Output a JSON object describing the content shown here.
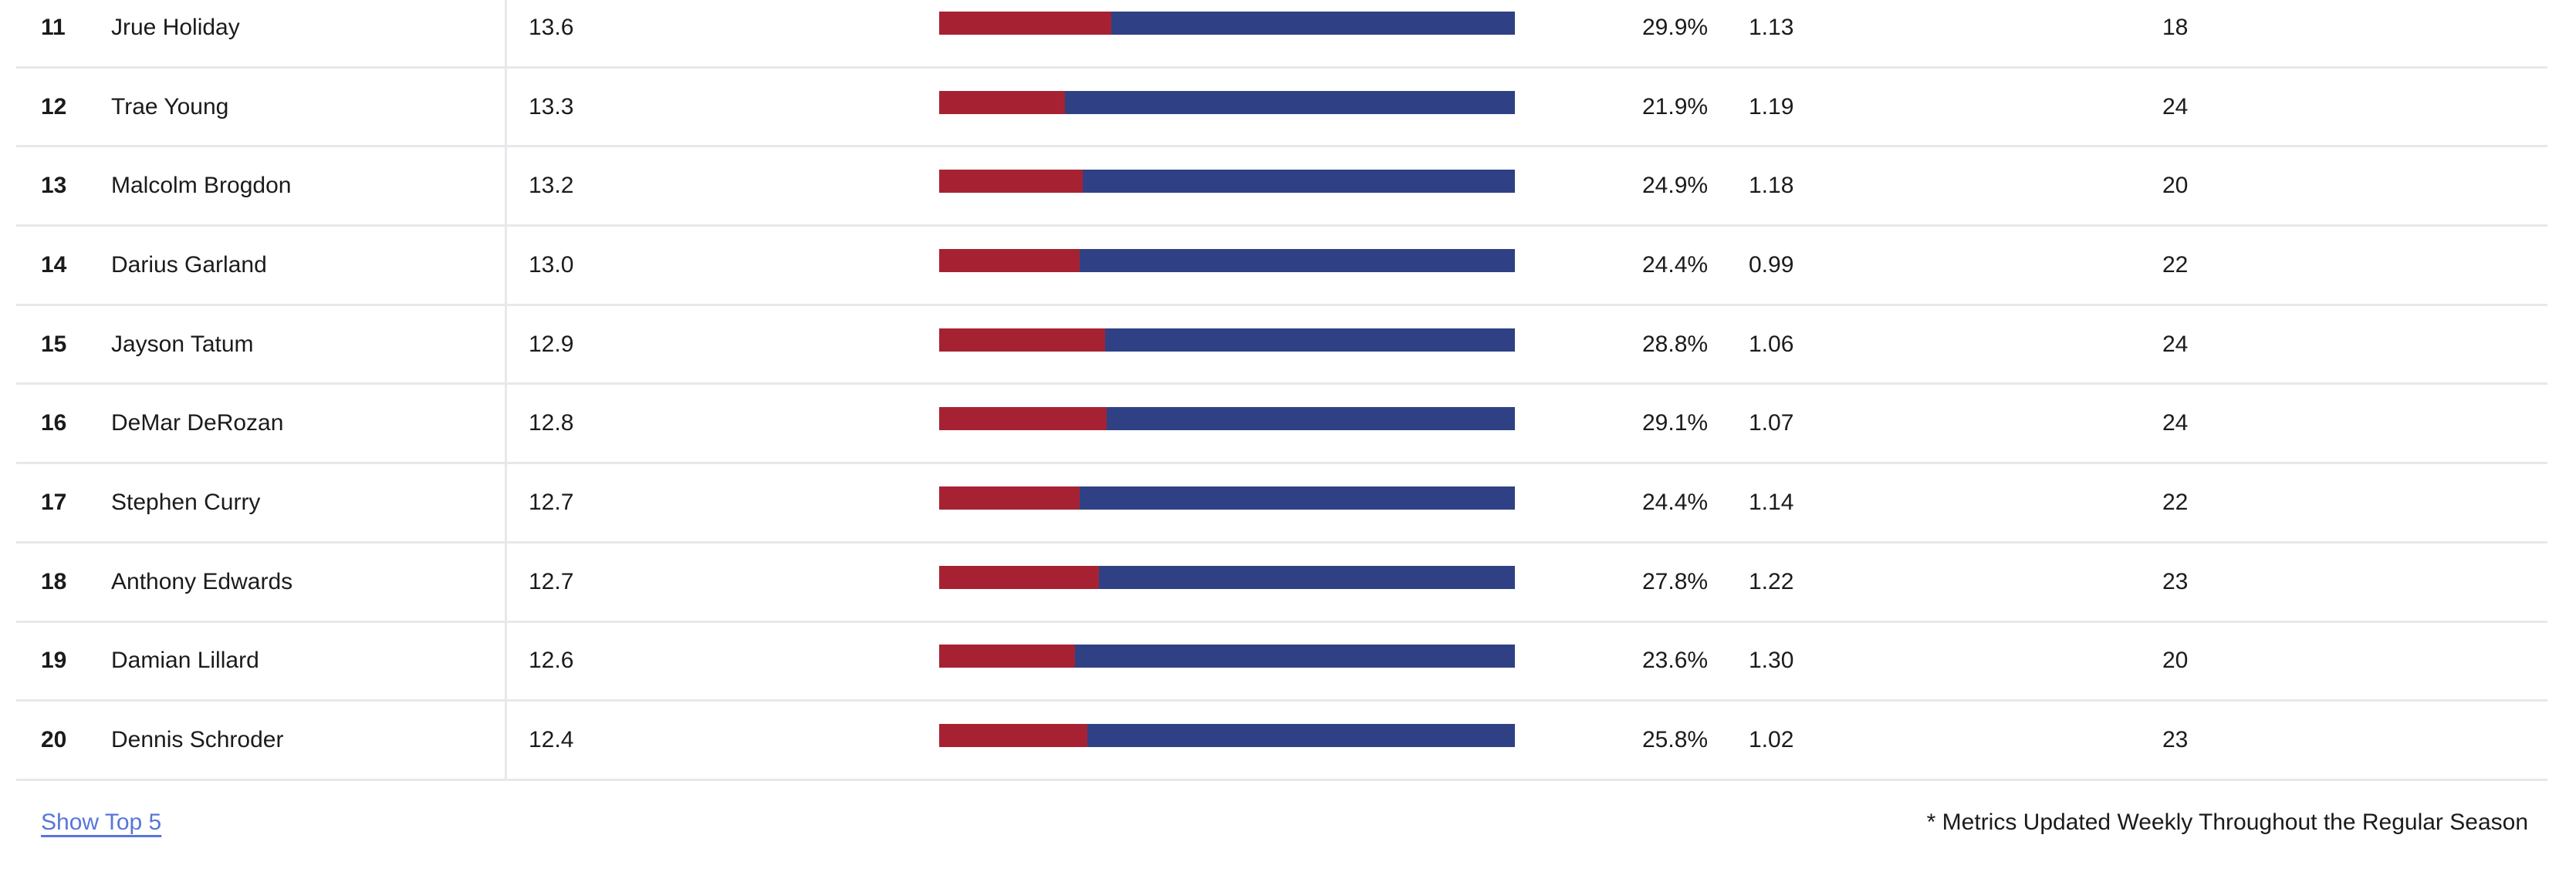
{
  "chart_data": {
    "type": "table",
    "description": "Player ranking table, rows 11-20. Each row contains a stacked horizontal bar: the red segment width equals the pct column value and the blue segment fills the remainder to 100%. Bars span a fixed track; no axes or headers are visible.",
    "columns": [
      "rank",
      "player",
      "value",
      "stacked_bar",
      "pct",
      "ratio",
      "count"
    ],
    "rows": [
      {
        "rank": "11",
        "player": "Jrue Holiday",
        "value": "13.6",
        "pct": 29.9,
        "pct_label": "29.9%",
        "ratio": "1.13",
        "count": "18"
      },
      {
        "rank": "12",
        "player": "Trae Young",
        "value": "13.3",
        "pct": 21.9,
        "pct_label": "21.9%",
        "ratio": "1.19",
        "count": "24"
      },
      {
        "rank": "13",
        "player": "Malcolm Brogdon",
        "value": "13.2",
        "pct": 24.9,
        "pct_label": "24.9%",
        "ratio": "1.18",
        "count": "20"
      },
      {
        "rank": "14",
        "player": "Darius Garland",
        "value": "13.0",
        "pct": 24.4,
        "pct_label": "24.4%",
        "ratio": "0.99",
        "count": "22"
      },
      {
        "rank": "15",
        "player": "Jayson Tatum",
        "value": "12.9",
        "pct": 28.8,
        "pct_label": "28.8%",
        "ratio": "1.06",
        "count": "24"
      },
      {
        "rank": "16",
        "player": "DeMar DeRozan",
        "value": "12.8",
        "pct": 29.1,
        "pct_label": "29.1%",
        "ratio": "1.07",
        "count": "24"
      },
      {
        "rank": "17",
        "player": "Stephen Curry",
        "value": "12.7",
        "pct": 24.4,
        "pct_label": "24.4%",
        "ratio": "1.14",
        "count": "22"
      },
      {
        "rank": "18",
        "player": "Anthony Edwards",
        "value": "12.7",
        "pct": 27.8,
        "pct_label": "27.8%",
        "ratio": "1.22",
        "count": "23"
      },
      {
        "rank": "19",
        "player": "Damian Lillard",
        "value": "12.6",
        "pct": 23.6,
        "pct_label": "23.6%",
        "ratio": "1.30",
        "count": "20"
      },
      {
        "rank": "20",
        "player": "Dennis Schroder",
        "value": "12.4",
        "pct": 25.8,
        "pct_label": "25.8%",
        "ratio": "1.02",
        "count": "23"
      }
    ],
    "bar_series": [
      {
        "name": "red-segment",
        "color": "#A62233"
      },
      {
        "name": "blue-segment",
        "color": "#2F4184"
      }
    ],
    "legend": "none",
    "grid": "horizontal row separators and one vertical column divider"
  },
  "footer": {
    "link_label": "Show Top 5",
    "note": "* Metrics Updated Weekly Throughout the Regular Season"
  },
  "colors": {
    "bar_red": "#A62233",
    "bar_blue": "#2F4184",
    "link": "#5876D9",
    "separator": "#E8E8EC",
    "text": "#1B1B1D",
    "background": "#FFFFFF"
  }
}
